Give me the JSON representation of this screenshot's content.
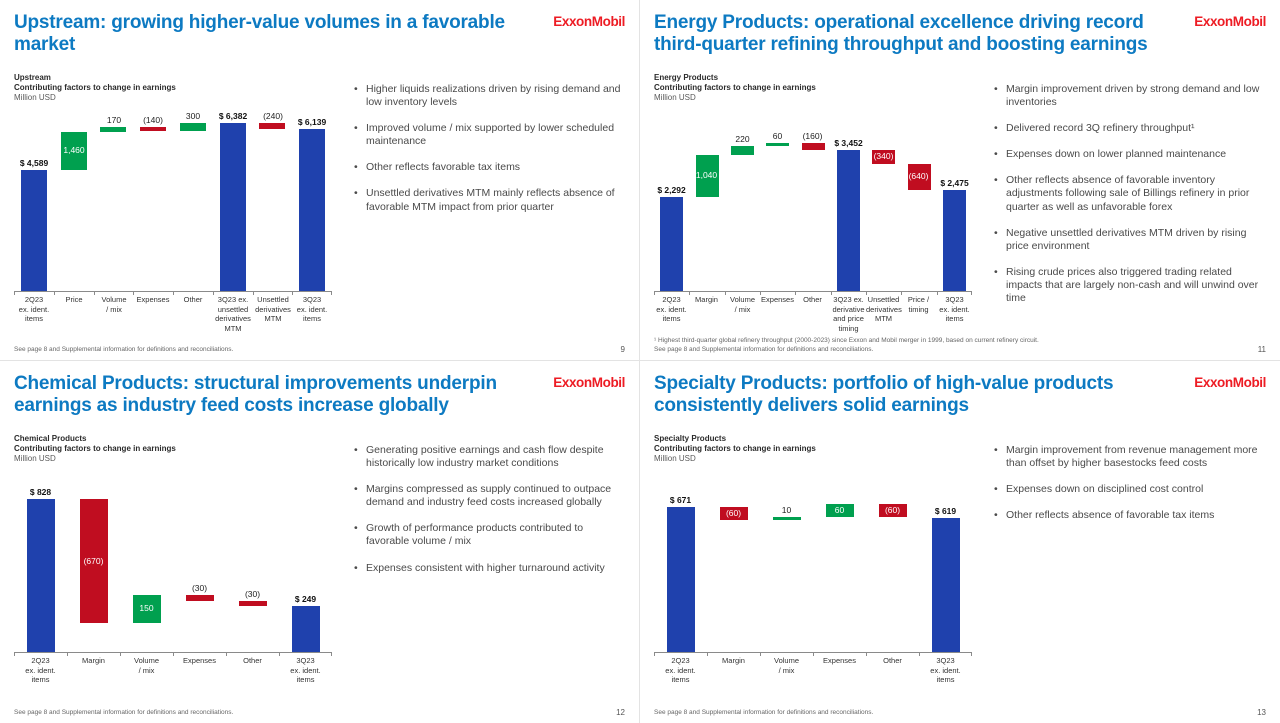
{
  "brand": {
    "logo_text": "ExxonMobil",
    "logo_color": "#ed1c24",
    "title_color": "#0d7ac2",
    "bar_blue": "#1f41ad",
    "bar_green": "#00a04f",
    "bar_red": "#c00d20"
  },
  "slides": [
    {
      "title": "Upstream: growing higher-value volumes in a favorable market",
      "chart_label": {
        "segment": "Upstream",
        "subtitle": "Contributing factors to change in earnings",
        "units": "Million USD"
      },
      "bullets": [
        "Higher liquids realizations driven by rising demand and low inventory levels",
        "Improved volume / mix supported by lower scheduled maintenance",
        "Other reflects favorable tax items",
        "Unsettled derivatives MTM mainly reflects absence of favorable MTM impact from prior quarter"
      ],
      "footnote": "See page 8 and Supplemental information for definitions and reconciliations.",
      "page_number": "9"
    },
    {
      "title": "Energy Products: operational excellence driving record third-quarter refining throughput and boosting earnings",
      "chart_label": {
        "segment": "Energy Products",
        "subtitle": "Contributing factors to change in earnings",
        "units": "Million USD"
      },
      "bullets": [
        "Margin improvement driven by strong demand and low inventories",
        "Delivered record 3Q refinery throughput¹",
        "Expenses down on lower planned maintenance",
        "Other reflects absence of favorable inventory adjustments following sale of Billings refinery in prior quarter as well as unfavorable forex",
        "Negative unsettled derivatives MTM driven by rising price environment",
        "Rising crude prices also triggered trading related impacts that are largely non-cash and will unwind over time"
      ],
      "footnote": "¹ Highest third-quarter global refinery throughput (2000-2023) since Exxon and Mobil merger in 1999, based on current refinery circuit.\nSee page 8 and Supplemental information for definitions and reconciliations.",
      "page_number": "11"
    },
    {
      "title": "Chemical Products: structural improvements underpin earnings as industry feed costs increase globally",
      "chart_label": {
        "segment": "Chemical Products",
        "subtitle": "Contributing factors to change in earnings",
        "units": "Million USD"
      },
      "bullets": [
        "Generating positive earnings and cash flow despite historically low industry market conditions",
        "Margins compressed as supply continued to outpace demand and industry feed costs increased globally",
        "Growth of performance products contributed to favorable volume / mix",
        "Expenses consistent with higher turnaround activity"
      ],
      "footnote": "See page 8 and Supplemental information for definitions and reconciliations.",
      "page_number": "12"
    },
    {
      "title": "Specialty Products: portfolio of high-value products consistently delivers solid earnings",
      "chart_label": {
        "segment": "Specialty Products",
        "subtitle": "Contributing factors to change in earnings",
        "units": "Million USD"
      },
      "bullets": [
        "Margin improvement from revenue management more than offset by higher basestocks feed costs",
        "Expenses down on disciplined cost control",
        "Other reflects absence of favorable tax items"
      ],
      "footnote": "See page 8 and Supplemental information for definitions and reconciliations.",
      "page_number": "13"
    }
  ],
  "chart_data": [
    {
      "type": "bar",
      "subtype": "waterfall",
      "title": "Upstream - Contributing factors to change in earnings",
      "ylabel": "Million USD",
      "ylim": [
        0,
        7000
      ],
      "categories": [
        "2Q23\nex. ident.\nitems",
        "Price",
        "Volume\n/ mix",
        "Expenses",
        "Other",
        "3Q23 ex.\nunsettled\nderivatives\nMTM",
        "Unsettled\nderivatives\nMTM",
        "3Q23\nex. ident.\nitems"
      ],
      "bars": [
        {
          "label": "$ 4,589",
          "kind": "total",
          "value": 4589
        },
        {
          "label": "1,460",
          "kind": "increase",
          "value": 1460
        },
        {
          "label": "170",
          "kind": "increase",
          "value": 170
        },
        {
          "label": "(140)",
          "kind": "decrease",
          "value": -140
        },
        {
          "label": "300",
          "kind": "increase",
          "value": 300
        },
        {
          "label": "$ 6,382",
          "kind": "total",
          "value": 6382
        },
        {
          "label": "(240)",
          "kind": "decrease",
          "value": -240
        },
        {
          "label": "$ 6,139",
          "kind": "total",
          "value": 6139
        }
      ]
    },
    {
      "type": "bar",
      "subtype": "waterfall",
      "title": "Energy Products - Contributing factors to change in earnings",
      "ylabel": "Million USD",
      "ylim": [
        0,
        4500
      ],
      "categories": [
        "2Q23\nex. ident.\nitems",
        "Margin",
        "Volume\n/ mix",
        "Expenses",
        "Other",
        "3Q23 ex.\nderivative\nand price\ntiming",
        "Unsettled\nderivatives\nMTM",
        "Price /\ntiming",
        "3Q23\nex. ident.\nitems"
      ],
      "bars": [
        {
          "label": "$ 2,292",
          "kind": "total",
          "value": 2292
        },
        {
          "label": "1,040",
          "kind": "increase",
          "value": 1040
        },
        {
          "label": "220",
          "kind": "increase",
          "value": 220
        },
        {
          "label": "60",
          "kind": "increase",
          "value": 60
        },
        {
          "label": "(160)",
          "kind": "decrease",
          "value": -160
        },
        {
          "label": "$ 3,452",
          "kind": "total",
          "value": 3452
        },
        {
          "label": "(340)",
          "kind": "decrease",
          "value": -340
        },
        {
          "label": "(640)",
          "kind": "decrease",
          "value": -640
        },
        {
          "label": "$ 2,475",
          "kind": "total",
          "value": 2475
        }
      ]
    },
    {
      "type": "bar",
      "subtype": "waterfall",
      "title": "Chemical Products - Contributing factors to change in earnings",
      "ylabel": "Million USD",
      "ylim": [
        0,
        1000
      ],
      "categories": [
        "2Q23\nex. ident.\nitems",
        "Margin",
        "Volume\n/ mix",
        "Expenses",
        "Other",
        "3Q23\nex. ident.\nitems"
      ],
      "bars": [
        {
          "label": "$ 828",
          "kind": "total",
          "value": 828
        },
        {
          "label": "(670)",
          "kind": "decrease",
          "value": -670
        },
        {
          "label": "150",
          "kind": "increase",
          "value": 150
        },
        {
          "label": "(30)",
          "kind": "decrease",
          "value": -30
        },
        {
          "label": "(30)",
          "kind": "decrease",
          "value": -30
        },
        {
          "label": "$ 249",
          "kind": "total",
          "value": 249
        }
      ]
    },
    {
      "type": "bar",
      "subtype": "waterfall",
      "title": "Specialty Products - Contributing factors to change in earnings",
      "ylabel": "Million USD",
      "ylim": [
        0,
        850
      ],
      "categories": [
        "2Q23\nex. ident.\nitems",
        "Margin",
        "Volume\n/ mix",
        "Expenses",
        "Other",
        "3Q23\nex. ident.\nitems"
      ],
      "bars": [
        {
          "label": "$ 671",
          "kind": "total",
          "value": 671
        },
        {
          "label": "(60)",
          "kind": "decrease",
          "value": -60
        },
        {
          "label": "10",
          "kind": "increase",
          "value": 10
        },
        {
          "label": "60",
          "kind": "increase",
          "value": 60
        },
        {
          "label": "(60)",
          "kind": "decrease",
          "value": -60
        },
        {
          "label": "$ 619",
          "kind": "total",
          "value": 619
        }
      ]
    }
  ]
}
